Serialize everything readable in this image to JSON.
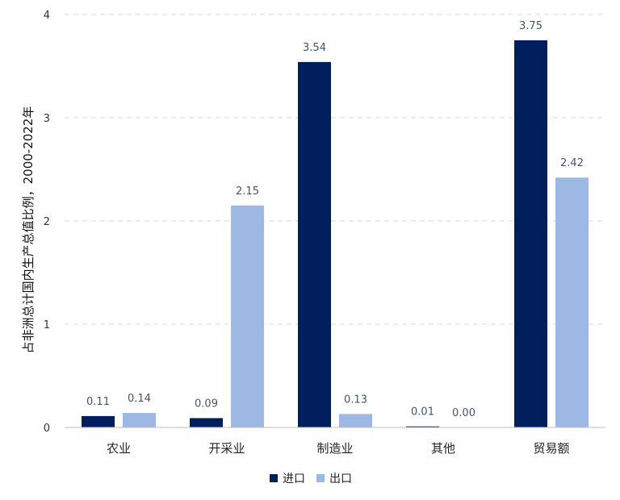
{
  "chart_data": {
    "type": "bar",
    "title": "",
    "xlabel": "",
    "ylabel": "占非洲总计国内生产总值比例，2000-2022年",
    "ylim": [
      0,
      4
    ],
    "yticks": [
      "0",
      "1",
      "2",
      "3",
      "4"
    ],
    "grid": true,
    "legend_position": "bottom",
    "categories": [
      "农业",
      "开采业",
      "制造业",
      "其他",
      "贸易额"
    ],
    "series": [
      {
        "name": "进口",
        "color": "#001F5C",
        "values": [
          0.11,
          0.09,
          3.54,
          0.01,
          3.75
        ],
        "labels": [
          "0.11",
          "0.09",
          "3.54",
          "0.01",
          "3.75"
        ]
      },
      {
        "name": "出口",
        "color": "#9DB9E3",
        "values": [
          0.14,
          2.15,
          0.13,
          0.0,
          2.42
        ],
        "labels": [
          "0.14",
          "2.15",
          "0.13",
          "0.00",
          "2.42"
        ]
      }
    ]
  }
}
